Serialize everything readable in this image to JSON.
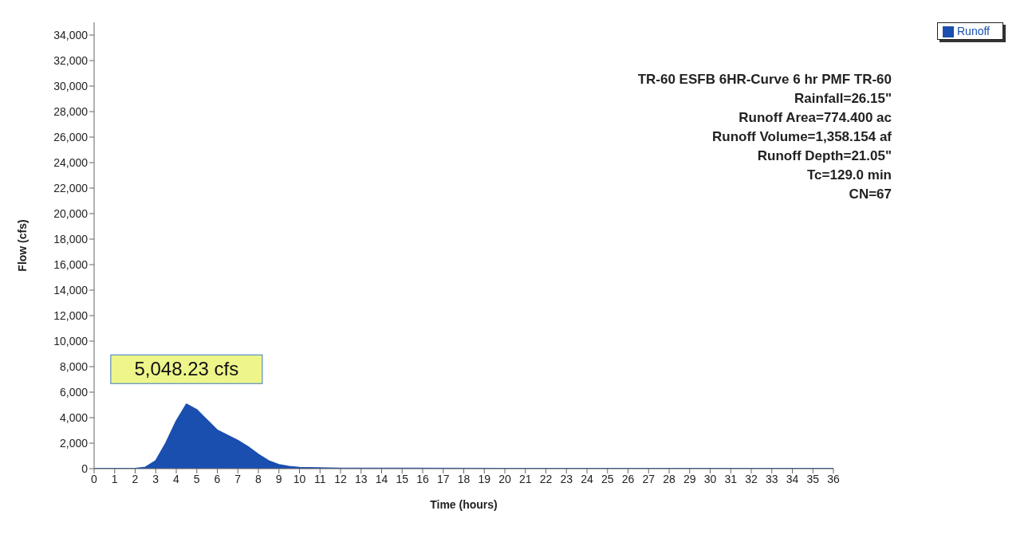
{
  "chart_data": {
    "type": "area",
    "xlabel": "Time  (hours)",
    "ylabel": "Flow  (cfs)",
    "x": [
      0,
      1,
      2,
      2.5,
      3,
      3.5,
      4,
      4.5,
      5,
      5.5,
      6,
      6.5,
      7,
      7.5,
      8,
      8.5,
      9,
      9.5,
      10,
      11,
      12,
      14,
      20,
      36
    ],
    "series": [
      {
        "name": "Runoff",
        "color": "#1a4fb0",
        "values": [
          0,
          0,
          0,
          100,
          600,
          2000,
          3700,
          5048.23,
          4600,
          3800,
          3000,
          2600,
          2200,
          1700,
          1100,
          600,
          300,
          150,
          80,
          40,
          20,
          10,
          5,
          0
        ]
      }
    ],
    "xlim": [
      0,
      36
    ],
    "xticks": [
      0,
      1,
      2,
      3,
      4,
      5,
      6,
      7,
      8,
      9,
      10,
      11,
      12,
      13,
      14,
      15,
      16,
      17,
      18,
      19,
      20,
      21,
      22,
      23,
      24,
      25,
      26,
      27,
      28,
      29,
      30,
      31,
      32,
      33,
      34,
      35,
      36
    ],
    "ylim": [
      0,
      35000
    ],
    "yticks": [
      {
        "value": 0,
        "label": "0"
      },
      {
        "value": 2000,
        "label": "2,000"
      },
      {
        "value": 4000,
        "label": "4,000"
      },
      {
        "value": 6000,
        "label": "6,000"
      },
      {
        "value": 8000,
        "label": "8,000"
      },
      {
        "value": 10000,
        "label": "10,000"
      },
      {
        "value": 12000,
        "label": "12,000"
      },
      {
        "value": 14000,
        "label": "14,000"
      },
      {
        "value": 16000,
        "label": "16,000"
      },
      {
        "value": 18000,
        "label": "18,000"
      },
      {
        "value": 20000,
        "label": "20,000"
      },
      {
        "value": 22000,
        "label": "22,000"
      },
      {
        "value": 24000,
        "label": "24,000"
      },
      {
        "value": 26000,
        "label": "26,000"
      },
      {
        "value": 28000,
        "label": "28,000"
      },
      {
        "value": 30000,
        "label": "30,000"
      },
      {
        "value": 32000,
        "label": "32,000"
      },
      {
        "value": 34000,
        "label": "34,000"
      }
    ],
    "grid": false,
    "legend": "top right",
    "annotations": [
      {
        "text": "5,048.23 cfs",
        "x": 4.5,
        "y": 5048.23
      },
      "TR-60 ESFB 6HR-Curve 6 hr PMF TR-60",
      "Rainfall=26.15\"",
      "Runoff Area=774.400 ac",
      "Runoff Volume=1,358.154 af",
      "Runoff Depth=21.05\"",
      "Tc=129.0 min",
      "CN=67"
    ]
  }
}
